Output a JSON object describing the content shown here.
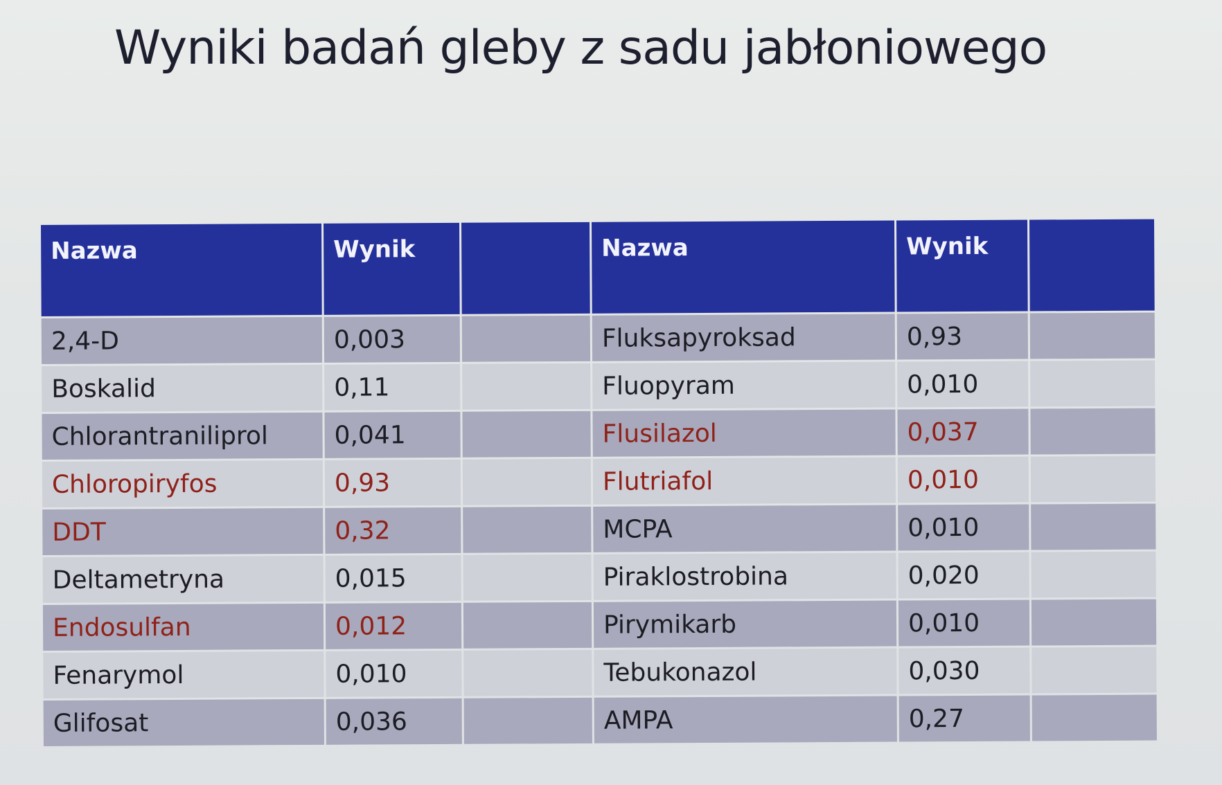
{
  "title": "Wyniki badań gleby z sadu jabłoniowego",
  "table": {
    "headers": [
      "Nazwa",
      "Wynik",
      "",
      "Nazwa",
      "Wynik",
      ""
    ],
    "highlight_color": "#8f2119",
    "header_color": "#25319a",
    "rows": [
      {
        "left_name": "2,4-D",
        "left_value": "0,003",
        "right_name": "Fluksapyroksad",
        "right_value": "0,93"
      },
      {
        "left_name": "Boskalid",
        "left_value": "0,11",
        "right_name": "Fluopyram",
        "right_value": "0,010"
      },
      {
        "left_name": "Chlorantraniliprol",
        "left_value": "0,041",
        "right_name": "Flusilazol",
        "right_value": "0,037"
      },
      {
        "left_name": "Chloropiryfos",
        "left_value": "0,93",
        "right_name": "Flutriafol",
        "right_value": "0,010"
      },
      {
        "left_name": "DDT",
        "left_value": "0,32",
        "right_name": "MCPA",
        "right_value": "0,010"
      },
      {
        "left_name": "Deltametryna",
        "left_value": "0,015",
        "right_name": "Piraklostrobina",
        "right_value": "0,020"
      },
      {
        "left_name": "Endosulfan",
        "left_value": "0,012",
        "right_name": "Pirymikarb",
        "right_value": "0,010"
      },
      {
        "left_name": "Fenarymol",
        "left_value": "0,010",
        "right_name": "Tebukonazol",
        "right_value": "0,030"
      },
      {
        "left_name": "Glifosat",
        "left_value": "0,036",
        "right_name": "AMPA",
        "right_value": "0,27"
      }
    ],
    "highlighted_left": [
      3,
      4,
      6
    ],
    "highlighted_right": [
      2,
      3
    ]
  }
}
